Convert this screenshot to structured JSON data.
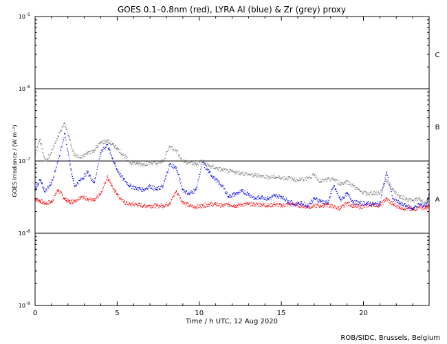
{
  "chart_data": {
    "type": "scatter",
    "title": "GOES 0.1–0.8nm (red), LYRA Al (blue) & Zr (grey) proxy",
    "xlabel": "Time / h UTC, 12 Aug 2020",
    "ylabel": "GOES Irradiance / (W m⁻²)",
    "xlim": [
      0,
      24
    ],
    "ylim": [
      1e-09,
      1e-05
    ],
    "yscale": "log",
    "grid": false,
    "xticks": [
      0,
      5,
      10,
      15,
      20
    ],
    "xtick_labels": [
      "0",
      "5",
      "10",
      "15",
      "20"
    ],
    "yticks": [
      {
        "value": 1e-09,
        "base": "10",
        "exp": "-9"
      },
      {
        "value": 1e-08,
        "base": "10",
        "exp": "-8"
      },
      {
        "value": 1e-07,
        "base": "10",
        "exp": "-7"
      },
      {
        "value": 1e-06,
        "base": "10",
        "exp": "-6"
      },
      {
        "value": 1e-05,
        "base": "10",
        "exp": "-5"
      }
    ],
    "class_lines": [
      1e-08,
      1e-07,
      1e-06
    ],
    "class_labels": [
      {
        "label": "A",
        "value": 3e-08
      },
      {
        "label": "B",
        "value": 3e-07
      },
      {
        "label": "C",
        "value": 3e-06
      }
    ],
    "series": [
      {
        "color": "#ff0000",
        "x": [
          0.0,
          0.3,
          0.6,
          1.0,
          1.4,
          1.8,
          2.1,
          2.4,
          2.8,
          3.2,
          3.6,
          4.0,
          4.4,
          4.7,
          5.0,
          5.4,
          5.8,
          6.2,
          6.6,
          7.0,
          7.4,
          7.8,
          8.2,
          8.6,
          9.0,
          9.4,
          9.8,
          10.2,
          10.6,
          11.0,
          11.4,
          11.8,
          12.2,
          12.6,
          13.0,
          13.4,
          13.8,
          14.2,
          14.6,
          15.0,
          15.4,
          15.8,
          16.2,
          16.6,
          17.0,
          17.4,
          17.8,
          18.2,
          18.6,
          19.0,
          19.4,
          19.8,
          20.2,
          20.6,
          21.0,
          21.4,
          21.8,
          22.2,
          22.6,
          23.0,
          23.4,
          23.8,
          24.0
        ],
        "values": [
          3e-08,
          2.8e-08,
          2.6e-08,
          2.7e-08,
          4e-08,
          3e-08,
          2.7e-08,
          2.8e-08,
          3.2e-08,
          3e-08,
          2.8e-08,
          3.5e-08,
          6e-08,
          4.5e-08,
          3.5e-08,
          2.7e-08,
          2.5e-08,
          2.5e-08,
          2.4e-08,
          2.4e-08,
          2.4e-08,
          2.4e-08,
          2.6e-08,
          3.8e-08,
          2.7e-08,
          2.4e-08,
          2.3e-08,
          2.4e-08,
          2.5e-08,
          2.5e-08,
          2.4e-08,
          2.5e-08,
          2.4e-08,
          2.5e-08,
          2.5e-08,
          2.5e-08,
          2.5e-08,
          2.4e-08,
          2.5e-08,
          2.4e-08,
          2.5e-08,
          2.5e-08,
          2.4e-08,
          2.3e-08,
          2.4e-08,
          2.4e-08,
          2.5e-08,
          2.3e-08,
          2.2e-08,
          2.6e-08,
          2.4e-08,
          2.3e-08,
          2.4e-08,
          2.5e-08,
          2.4e-08,
          3e-08,
          2.5e-08,
          2.3e-08,
          2.2e-08,
          2.1e-08,
          2.3e-08,
          2.2e-08,
          2.4e-08
        ]
      },
      {
        "color": "#0000ff",
        "x": [
          0.0,
          0.3,
          0.6,
          1.0,
          1.4,
          1.8,
          2.1,
          2.4,
          2.8,
          3.2,
          3.6,
          4.0,
          4.4,
          4.7,
          5.0,
          5.4,
          5.8,
          6.2,
          6.6,
          7.0,
          7.4,
          7.8,
          8.2,
          8.6,
          9.0,
          9.4,
          9.8,
          10.2,
          10.6,
          11.0,
          11.4,
          11.8,
          12.2,
          12.6,
          13.0,
          13.4,
          13.8,
          14.2,
          14.6,
          15.0,
          15.4,
          15.8,
          16.2,
          16.6,
          17.0,
          17.4,
          17.8,
          18.2,
          18.6,
          19.0,
          19.4,
          19.8,
          20.2,
          20.6,
          21.0,
          21.4,
          21.8,
          22.2,
          22.6,
          23.0,
          23.4,
          23.8,
          24.0
        ],
        "values": [
          4e-08,
          5.5e-08,
          3.8e-08,
          5e-08,
          1e-07,
          2.4e-07,
          1e-07,
          4.5e-08,
          5.5e-08,
          7e-08,
          5e-08,
          1.3e-07,
          1.7e-07,
          1.1e-07,
          7.5e-08,
          5.5e-08,
          4.5e-08,
          4.2e-08,
          4e-08,
          4.5e-08,
          4e-08,
          4.5e-08,
          9e-08,
          8e-08,
          4e-08,
          3.5e-08,
          4e-08,
          9.5e-08,
          7e-08,
          5.5e-08,
          4.5e-08,
          3.2e-08,
          3.5e-08,
          3.8e-08,
          3.5e-08,
          3e-08,
          3.2e-08,
          3e-08,
          3.3e-08,
          3.2e-08,
          2.8e-08,
          2.5e-08,
          2.6e-08,
          2.4e-08,
          3e-08,
          2.8e-08,
          2.6e-08,
          4.5e-08,
          2.9e-08,
          3.5e-08,
          2.7e-08,
          2.6e-08,
          2.6e-08,
          2.5e-08,
          2.6e-08,
          7e-08,
          3e-08,
          2.6e-08,
          2.4e-08,
          2.2e-08,
          2.5e-08,
          2.4e-08,
          3.4e-08
        ]
      },
      {
        "color": "#808080",
        "x": [
          0.0,
          0.3,
          0.6,
          1.0,
          1.4,
          1.8,
          2.1,
          2.4,
          2.8,
          3.2,
          3.6,
          4.0,
          4.4,
          4.7,
          5.0,
          5.4,
          5.8,
          6.2,
          6.6,
          7.0,
          7.4,
          7.8,
          8.2,
          8.6,
          9.0,
          9.4,
          9.8,
          10.2,
          10.6,
          11.0,
          11.4,
          11.8,
          12.2,
          12.6,
          13.0,
          13.4,
          13.8,
          14.2,
          14.6,
          15.0,
          15.4,
          15.8,
          16.2,
          16.6,
          17.0,
          17.4,
          17.8,
          18.2,
          18.6,
          19.0,
          19.4,
          19.8,
          20.2,
          20.6,
          21.0,
          21.4,
          21.8,
          22.2,
          22.6,
          23.0,
          23.4,
          23.8,
          24.0
        ],
        "values": [
          1.2e-07,
          2e-07,
          1e-07,
          1.3e-07,
          2.2e-07,
          3.3e-07,
          2e-07,
          1.2e-07,
          1.1e-07,
          1.3e-07,
          1.4e-07,
          1.8e-07,
          1.9e-07,
          1.7e-07,
          1.5e-07,
          1.2e-07,
          9.5e-08,
          9.2e-08,
          9e-08,
          9.5e-08,
          9.2e-08,
          9.8e-08,
          1.6e-07,
          1.4e-07,
          1e-07,
          9.5e-08,
          9e-08,
          1e-07,
          8.5e-08,
          8e-08,
          7.5e-08,
          7.2e-08,
          7e-08,
          6.8e-08,
          6.5e-08,
          6.3e-08,
          6.2e-08,
          6e-08,
          6e-08,
          5.8e-08,
          5.8e-08,
          5.6e-08,
          5.5e-08,
          5.8e-08,
          6.4e-08,
          5.2e-08,
          5.5e-08,
          5.6e-08,
          4.8e-08,
          5.2e-08,
          4.5e-08,
          3.8e-08,
          3.5e-08,
          3.6e-08,
          3.6e-08,
          5.5e-08,
          4e-08,
          3.2e-08,
          3e-08,
          2.8e-08,
          3e-08,
          2.6e-08,
          3e-08
        ]
      }
    ]
  },
  "credit": "ROB/SIDC, Brussels, Belgium"
}
